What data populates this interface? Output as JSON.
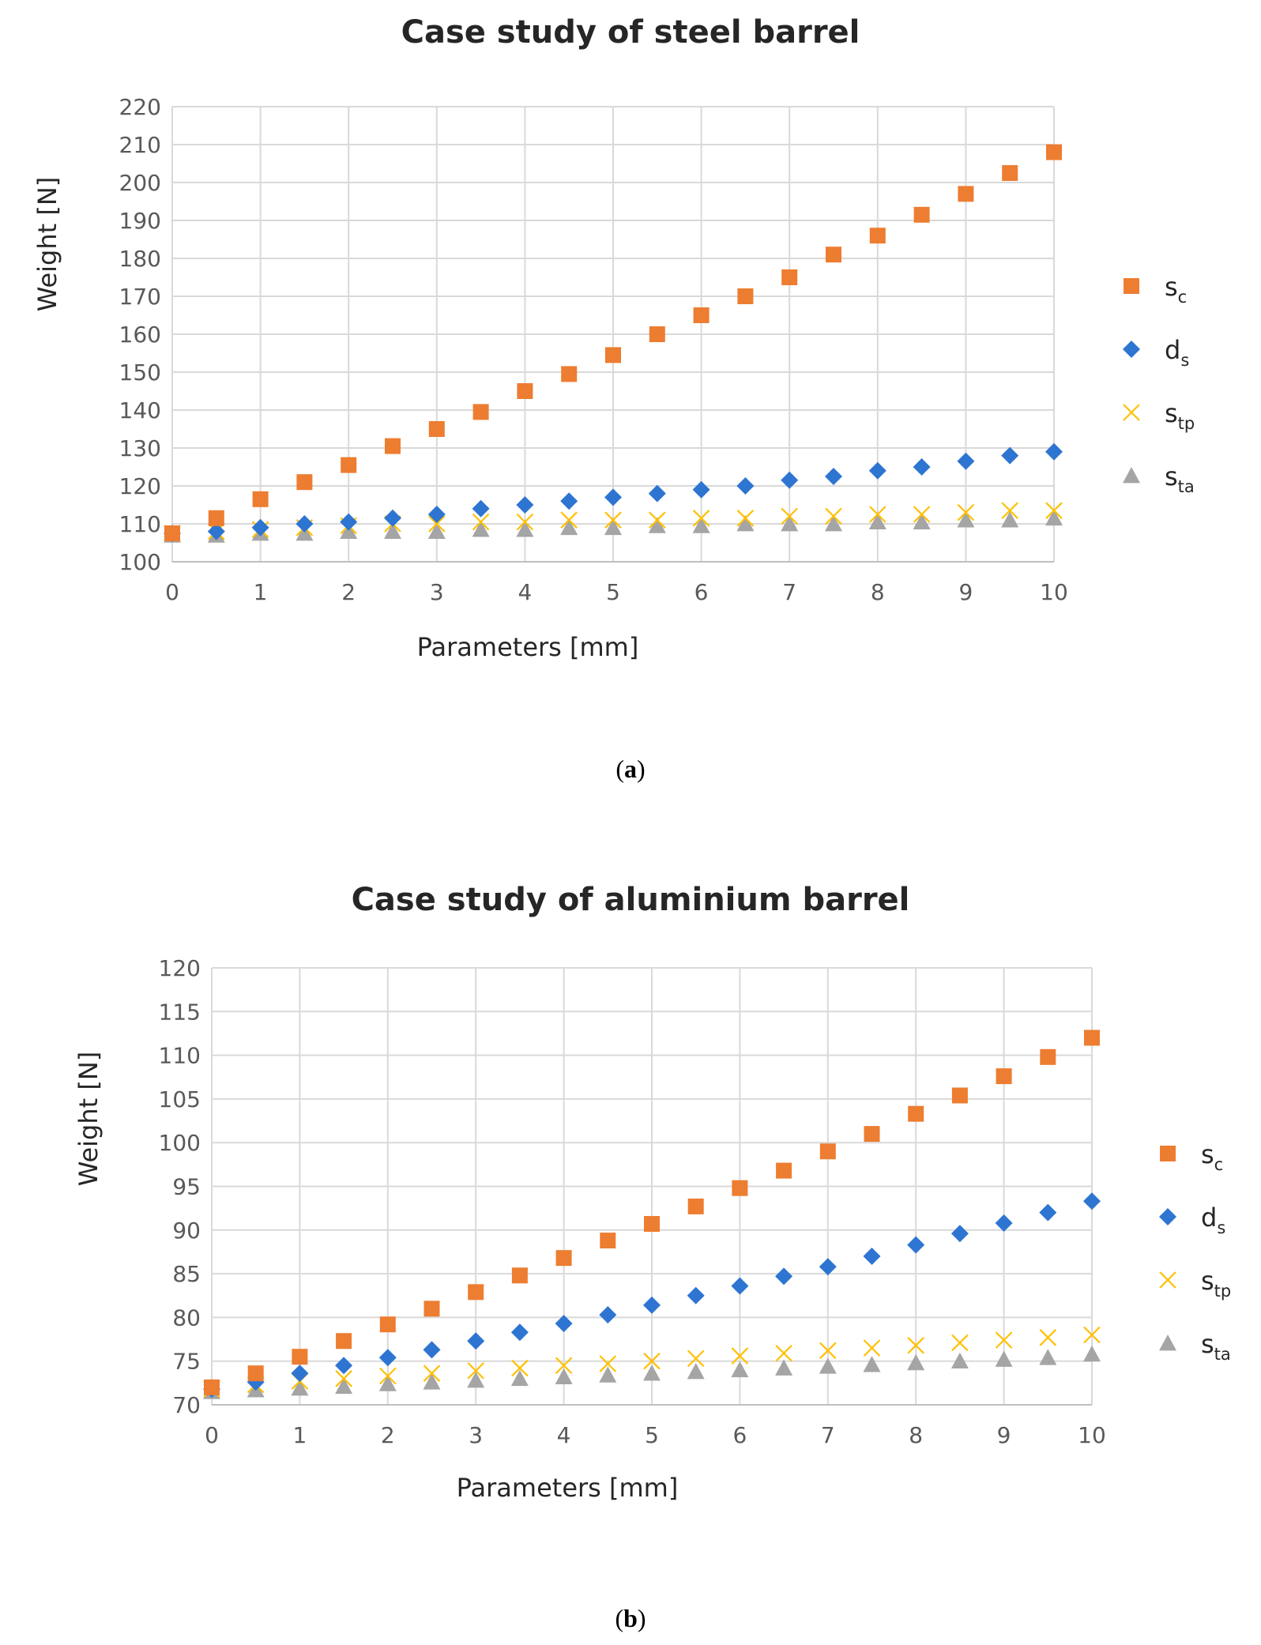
{
  "chart_data": [
    {
      "type": "scatter",
      "title": "Case study of steel barrel",
      "xlabel": "Parameters [mm]",
      "ylabel": "Weight [N]",
      "caption_letter": "a",
      "xlim": [
        0,
        10
      ],
      "ylim": [
        100,
        220
      ],
      "xticks": [
        0,
        1,
        2,
        3,
        4,
        5,
        6,
        7,
        8,
        9,
        10
      ],
      "yticks": [
        100,
        110,
        120,
        130,
        140,
        150,
        160,
        170,
        180,
        190,
        200,
        210,
        220
      ],
      "grid": true,
      "legend_position": "right",
      "x": [
        0,
        0.5,
        1,
        1.5,
        2,
        2.5,
        3,
        3.5,
        4,
        4.5,
        5,
        5.5,
        6,
        6.5,
        7,
        7.5,
        8,
        8.5,
        9,
        9.5,
        10
      ],
      "series": [
        {
          "name": "s",
          "sub": "c",
          "marker": "square",
          "color": "#ED7D31",
          "values": [
            107.5,
            111.5,
            116.5,
            121,
            125.5,
            130.5,
            135,
            139.5,
            145,
            149.5,
            154.5,
            160,
            165,
            170,
            175,
            181,
            186,
            191.5,
            197,
            202.5,
            208
          ]
        },
        {
          "name": "d",
          "sub": "s",
          "marker": "diamond",
          "color": "#2E75D2",
          "values": [
            107.5,
            108,
            109,
            110,
            110.5,
            111.5,
            112.5,
            114,
            115,
            116,
            117,
            118,
            119,
            120,
            121.5,
            122.5,
            124,
            125,
            126.5,
            128,
            129
          ]
        },
        {
          "name": "s",
          "sub": "tp",
          "marker": "x",
          "color": "#FFC000",
          "values": [
            107.5,
            108,
            108.5,
            109,
            109.5,
            110,
            110,
            110.5,
            110.5,
            111,
            111,
            111,
            111.5,
            111.5,
            112,
            112,
            112.5,
            112.5,
            113,
            113.5,
            113.5
          ]
        },
        {
          "name": "s",
          "sub": "ta",
          "marker": "triangle",
          "color": "#A5A5A5",
          "values": [
            107,
            107,
            107.5,
            107.5,
            108,
            108,
            108,
            108.5,
            108.5,
            109,
            109,
            109.5,
            109.5,
            110,
            110,
            110,
            110.5,
            110.5,
            111,
            111,
            111.5
          ]
        }
      ]
    },
    {
      "type": "scatter",
      "title": "Case study of aluminium  barrel",
      "xlabel": "Parameters [mm]",
      "ylabel": "Weight [N]",
      "caption_letter": "b",
      "xlim": [
        0,
        10
      ],
      "ylim": [
        70,
        120
      ],
      "xticks": [
        0,
        1,
        2,
        3,
        4,
        5,
        6,
        7,
        8,
        9,
        10
      ],
      "yticks": [
        70,
        75,
        80,
        85,
        90,
        95,
        100,
        105,
        110,
        115,
        120
      ],
      "grid": true,
      "legend_position": "right",
      "x": [
        0,
        0.5,
        1,
        1.5,
        2,
        2.5,
        3,
        3.5,
        4,
        4.5,
        5,
        5.5,
        6,
        6.5,
        7,
        7.5,
        8,
        8.5,
        9,
        9.5,
        10
      ],
      "series": [
        {
          "name": "s",
          "sub": "c",
          "marker": "square",
          "color": "#ED7D31",
          "values": [
            72,
            73.6,
            75.5,
            77.3,
            79.2,
            81,
            82.9,
            84.8,
            86.8,
            88.8,
            90.7,
            92.7,
            94.8,
            96.8,
            99,
            101,
            103.3,
            105.4,
            107.6,
            109.8,
            112
          ]
        },
        {
          "name": "d",
          "sub": "s",
          "marker": "diamond",
          "color": "#2E75D2",
          "values": [
            71.8,
            72.6,
            73.6,
            74.5,
            75.4,
            76.3,
            77.3,
            78.3,
            79.3,
            80.3,
            81.4,
            82.5,
            83.6,
            84.7,
            85.8,
            87,
            88.3,
            89.6,
            90.8,
            92,
            93.3
          ]
        },
        {
          "name": "s",
          "sub": "tp",
          "marker": "x",
          "color": "#FFC000",
          "values": [
            71.8,
            72.3,
            72.7,
            73,
            73.3,
            73.6,
            73.9,
            74.2,
            74.5,
            74.7,
            75,
            75.3,
            75.6,
            75.9,
            76.2,
            76.5,
            76.8,
            77.1,
            77.4,
            77.7,
            78
          ]
        },
        {
          "name": "s",
          "sub": "ta",
          "marker": "triangle",
          "color": "#A5A5A5",
          "values": [
            71.5,
            71.7,
            71.9,
            72.1,
            72.4,
            72.6,
            72.8,
            73,
            73.2,
            73.4,
            73.6,
            73.8,
            74,
            74.2,
            74.4,
            74.6,
            74.8,
            75,
            75.2,
            75.4,
            75.8
          ]
        }
      ]
    }
  ]
}
